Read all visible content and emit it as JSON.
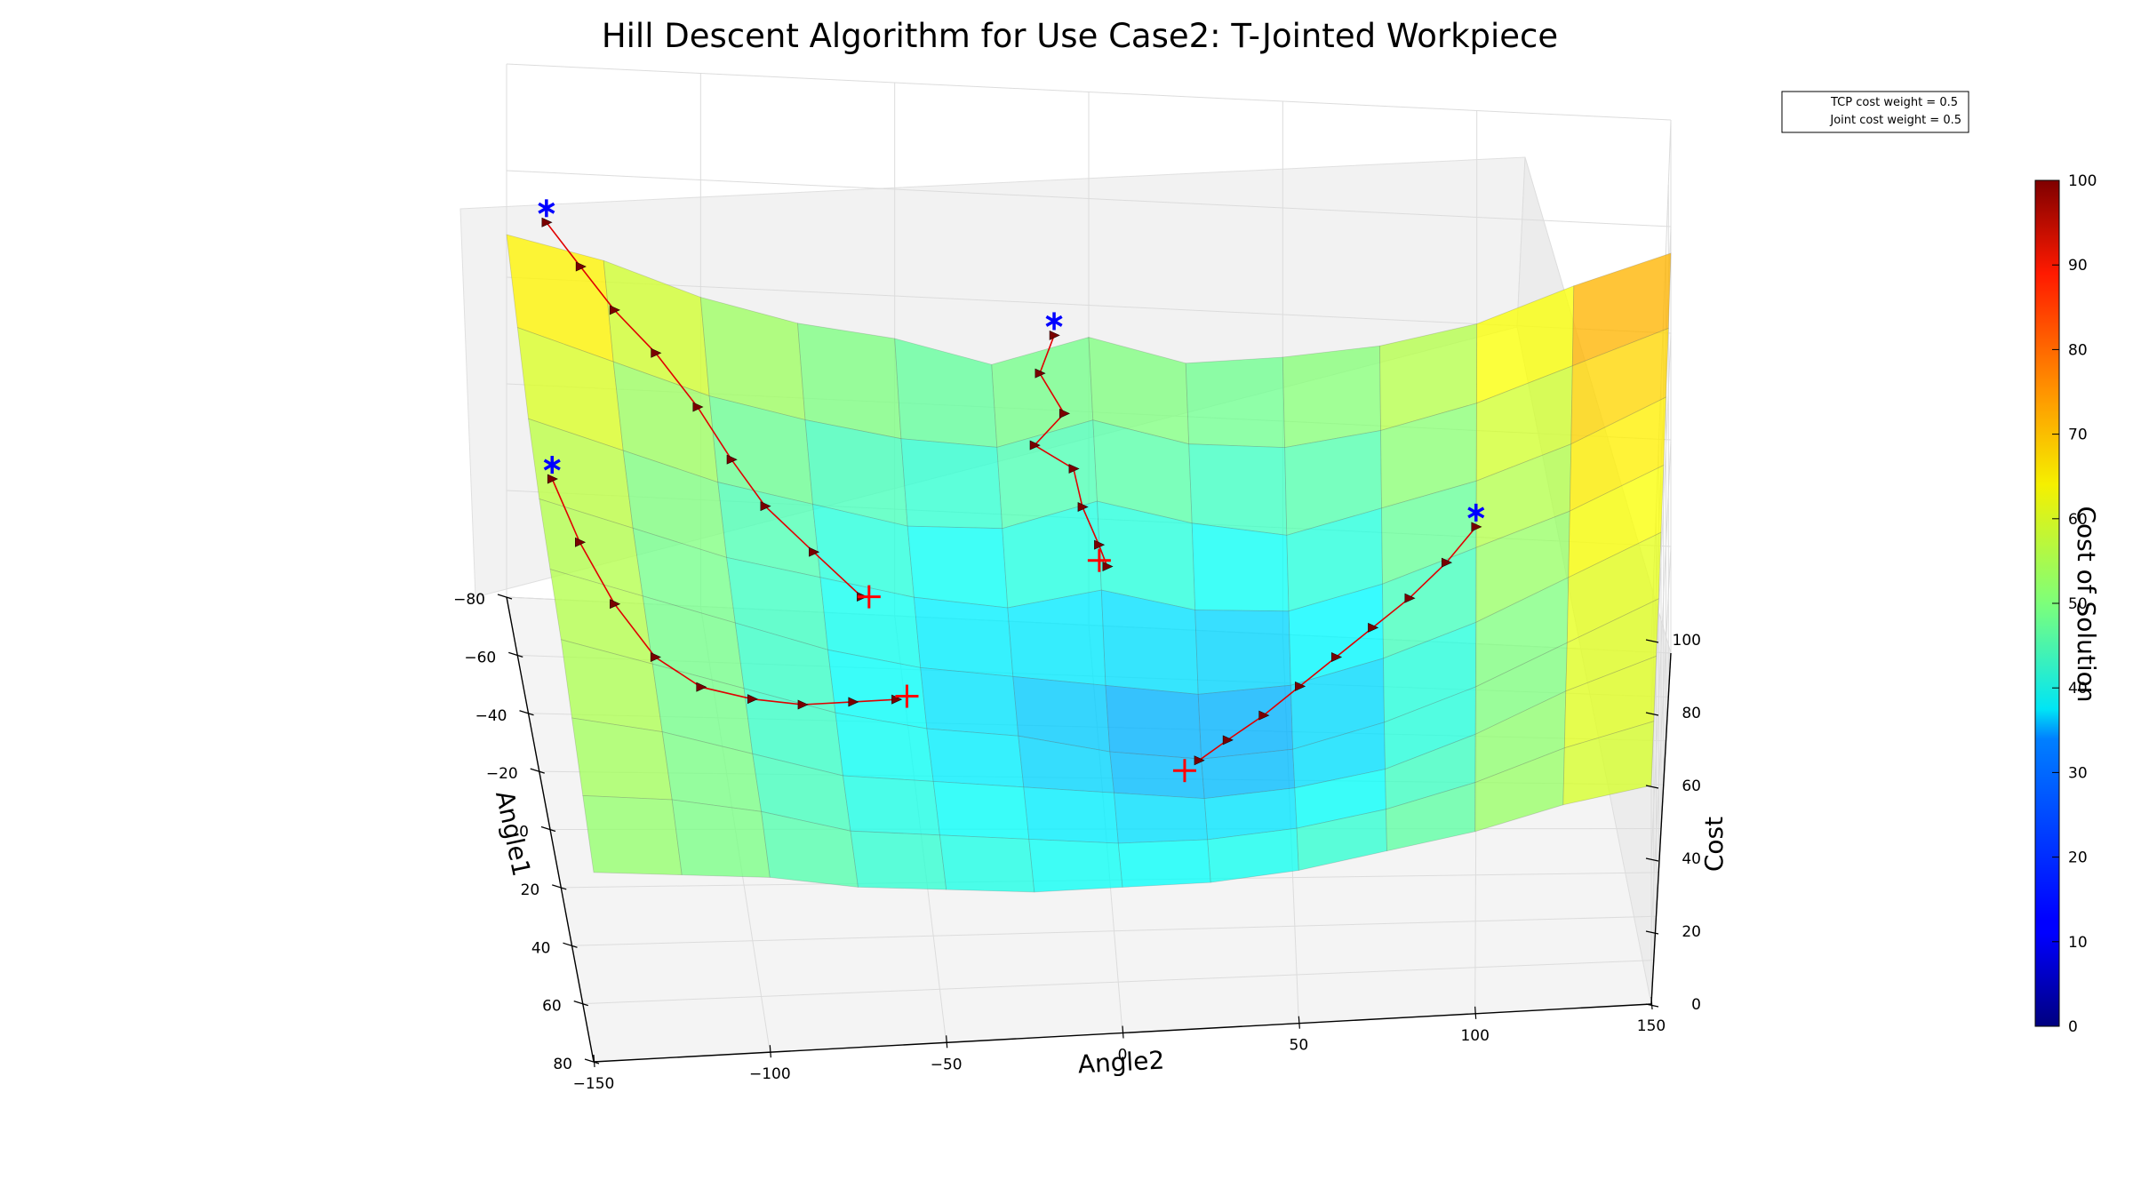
{
  "chart_data": {
    "type": "surface3d",
    "title": "Hill Descent Algorithm for Use Case2: T-Jointed Workpiece",
    "axes": {
      "angle1": {
        "label": "Angle1",
        "range": [
          -80,
          80
        ],
        "ticks": [
          -80,
          -60,
          -40,
          -20,
          0,
          20,
          40,
          60,
          80
        ]
      },
      "angle2": {
        "label": "Angle2",
        "range": [
          -150,
          150
        ],
        "ticks": [
          -150,
          -100,
          -50,
          0,
          50,
          100,
          150
        ]
      },
      "cost": {
        "label": "Cost",
        "range": [
          0,
          100
        ],
        "ticks": [
          0,
          20,
          40,
          60,
          80,
          100
        ]
      }
    },
    "legend": {
      "placement": "top-right",
      "entries": [
        "TCP cost weight = 0.5",
        "Joint cost weight = 0.5"
      ]
    },
    "colorbar": {
      "label": "Cost of Solution",
      "range": [
        0,
        100
      ],
      "ticks": [
        0,
        10,
        20,
        30,
        40,
        50,
        60,
        70,
        80,
        90,
        100
      ],
      "colormap": "jet"
    },
    "surface": {
      "angle1": [
        -80,
        -60,
        -40,
        -20,
        0,
        20,
        40,
        60,
        80
      ],
      "angle2": [
        -150,
        -125,
        -100,
        -75,
        -50,
        -25,
        0,
        25,
        50,
        75,
        100,
        125,
        150
      ],
      "cost": [
        [
          68,
          64,
          58,
          54,
          52,
          48,
          54,
          50,
          52,
          55,
          60,
          68,
          75
        ],
        [
          64,
          58,
          52,
          48,
          45,
          44,
          50,
          46,
          46,
          50,
          56,
          64,
          72
        ],
        [
          60,
          54,
          48,
          44,
          40,
          40,
          46,
          42,
          40,
          46,
          52,
          60,
          70
        ],
        [
          58,
          52,
          46,
          42,
          38,
          36,
          40,
          36,
          36,
          42,
          50,
          58,
          68
        ],
        [
          58,
          52,
          46,
          40,
          36,
          34,
          32,
          30,
          32,
          38,
          46,
          56,
          66
        ],
        [
          58,
          52,
          46,
          40,
          36,
          34,
          30,
          28,
          30,
          36,
          44,
          54,
          64
        ],
        [
          56,
          52,
          46,
          40,
          38,
          36,
          34,
          32,
          34,
          38,
          46,
          56,
          64
        ],
        [
          54,
          52,
          48,
          42,
          40,
          38,
          36,
          36,
          38,
          42,
          48,
          56,
          62
        ],
        [
          52,
          50,
          48,
          44,
          42,
          40,
          40,
          40,
          42,
          46,
          50,
          56,
          60
        ]
      ]
    },
    "start_points": [
      {
        "angle1": -78,
        "angle2": -140,
        "cost": 72
      },
      {
        "angle1": -62,
        "angle2": -10,
        "cost": 65
      },
      {
        "angle1": -10,
        "angle2": -148,
        "cost": 70
      },
      {
        "angle1": -8,
        "angle2": 100,
        "cost": 62
      }
    ],
    "end_points": [
      {
        "angle1": -20,
        "angle2": -62,
        "cost": 38
      },
      {
        "angle1": -30,
        "angle2": 0,
        "cost": 40
      },
      {
        "angle1": 15,
        "angle2": -55,
        "cost": 40
      },
      {
        "angle1": 30,
        "angle2": 20,
        "cost": 32
      }
    ],
    "paths": [
      [
        [
          -78,
          -140,
          72
        ],
        [
          -72,
          -132,
          68
        ],
        [
          -66,
          -124,
          64
        ],
        [
          -60,
          -114,
          60
        ],
        [
          -52,
          -104,
          55
        ],
        [
          -44,
          -96,
          50
        ],
        [
          -36,
          -88,
          46
        ],
        [
          -28,
          -76,
          42
        ],
        [
          -20,
          -64,
          38
        ]
      ],
      [
        [
          -62,
          -10,
          65
        ],
        [
          -58,
          -14,
          60
        ],
        [
          -52,
          -8,
          56
        ],
        [
          -48,
          -16,
          52
        ],
        [
          -44,
          -6,
          50
        ],
        [
          -38,
          -4,
          46
        ],
        [
          -32,
          0,
          42
        ],
        [
          -28,
          2,
          40
        ]
      ],
      [
        [
          -10,
          -148,
          70
        ],
        [
          0,
          -142,
          64
        ],
        [
          10,
          -134,
          58
        ],
        [
          18,
          -124,
          52
        ],
        [
          22,
          -112,
          48
        ],
        [
          22,
          -98,
          45
        ],
        [
          20,
          -84,
          42
        ],
        [
          18,
          -70,
          41
        ],
        [
          16,
          -58,
          40
        ]
      ],
      [
        [
          -8,
          100,
          62
        ],
        [
          -2,
          92,
          58
        ],
        [
          4,
          82,
          54
        ],
        [
          8,
          72,
          50
        ],
        [
          12,
          62,
          46
        ],
        [
          16,
          52,
          42
        ],
        [
          20,
          42,
          38
        ],
        [
          24,
          32,
          35
        ],
        [
          28,
          24,
          33
        ]
      ]
    ]
  }
}
